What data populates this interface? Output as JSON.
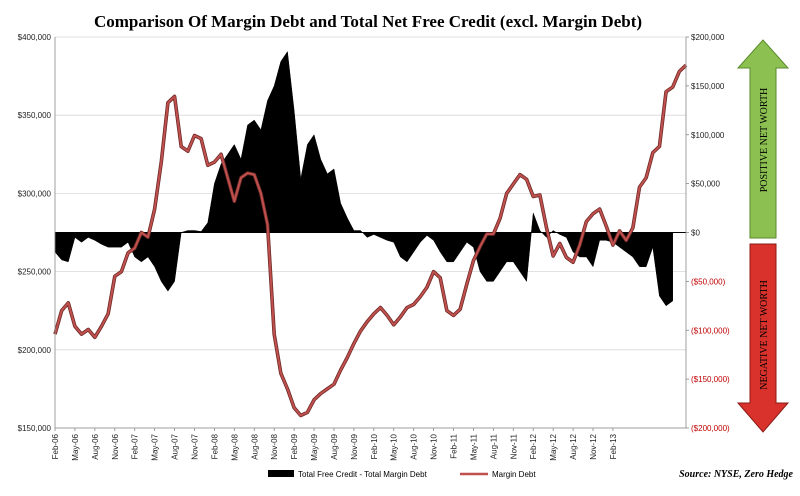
{
  "chart_data": {
    "type": "area+line",
    "title": "Comparison Of Margin Debt and Total Net Free Credit (excl. Margin Debt)",
    "source": "Source: NYSE, Zero Hedge",
    "x_tick_labels": [
      "Feb-06",
      "May-06",
      "Aug-06",
      "Nov-06",
      "Feb-07",
      "May-07",
      "Aug-07",
      "Nov-07",
      "Feb-08",
      "May-08",
      "Aug-08",
      "Nov-08",
      "Feb-09",
      "May-09",
      "Aug-09",
      "Nov-09",
      "Feb-10",
      "May-10",
      "Aug-10",
      "Nov-10",
      "Feb-11",
      "May-11",
      "Aug-11",
      "Nov-11",
      "Feb-12",
      "May-12",
      "Aug-12",
      "Nov-12",
      "Feb-13"
    ],
    "y_left": {
      "ticks": [
        "$150,000",
        "$200,000",
        "$250,000",
        "$300,000",
        "$350,000",
        "$400,000"
      ],
      "tick_values": [
        150000,
        200000,
        250000,
        300000,
        350000,
        400000
      ],
      "lim": [
        150000,
        400000
      ]
    },
    "y_right": {
      "ticks": [
        "($200,000)",
        "($150,000)",
        "($100,000)",
        "($50,000)",
        "$0",
        "$50,000",
        "$100,000",
        "$150,000",
        "$200,000"
      ],
      "tick_values": [
        -200000,
        -150000,
        -100000,
        -50000,
        0,
        50000,
        100000,
        150000,
        200000
      ],
      "lim": [
        -200000,
        200000
      ]
    },
    "series": [
      {
        "name": "Total Free Credit - Total Margin Debt",
        "axis": "right",
        "style": "area",
        "color": "#000000",
        "start": "Feb-06",
        "values": [
          -20000,
          -28000,
          -30000,
          -5000,
          -10000,
          -5000,
          -8000,
          -12000,
          -15000,
          -15000,
          -15000,
          -10000,
          -25000,
          -30000,
          -25000,
          -35000,
          -50000,
          -60000,
          -50000,
          0,
          2000,
          2000,
          1000,
          10000,
          50000,
          70000,
          80000,
          90000,
          75000,
          110000,
          115000,
          105000,
          135000,
          150000,
          175000,
          185000,
          125000,
          55000,
          90000,
          100000,
          75000,
          60000,
          65000,
          30000,
          15000,
          2000,
          2000,
          -5000,
          -2000,
          -5000,
          -8000,
          -10000,
          -25000,
          -30000,
          -20000,
          -10000,
          -3000,
          -8000,
          -20000,
          -30000,
          -30000,
          -20000,
          -10000,
          -15000,
          -40000,
          -50000,
          -50000,
          -40000,
          -30000,
          -30000,
          -40000,
          -50000,
          20000,
          2000,
          -5000,
          2000,
          -2000,
          -5000,
          -20000,
          -25000,
          -25000,
          -35000,
          -8000,
          -8000,
          -10000,
          -15000,
          -20000,
          -25000,
          -35000,
          -35000,
          -15000,
          -65000,
          -75000,
          -70000
        ]
      },
      {
        "name": "Margin Debt",
        "axis": "left",
        "style": "line",
        "color": "#c0504d",
        "start": "Feb-06",
        "values": [
          210000,
          225000,
          230000,
          215000,
          210000,
          213000,
          208000,
          215000,
          223000,
          247000,
          250000,
          262000,
          265000,
          275000,
          272000,
          290000,
          320000,
          358000,
          362000,
          330000,
          327000,
          337000,
          335000,
          318000,
          320000,
          325000,
          310000,
          295000,
          310000,
          313000,
          312000,
          300000,
          280000,
          210000,
          185000,
          175000,
          163000,
          158000,
          160000,
          168000,
          172000,
          175000,
          178000,
          187000,
          195000,
          204000,
          212000,
          218000,
          223000,
          227000,
          222000,
          216000,
          221000,
          227000,
          229000,
          234000,
          240000,
          250000,
          246000,
          225000,
          222000,
          226000,
          242000,
          257000,
          266000,
          274000,
          274000,
          284000,
          300000,
          306000,
          312000,
          309000,
          298000,
          299000,
          278000,
          260000,
          268000,
          259000,
          256000,
          267000,
          282000,
          287000,
          290000,
          279000,
          267000,
          276000,
          270000,
          278000,
          304000,
          310000,
          326000,
          330000,
          365000,
          368000,
          378000,
          382000
        ]
      }
    ],
    "grid": true
  },
  "legend": {
    "area_label": "Total Free Credit - Total Margin Debt",
    "line_label": "Margin Debt"
  },
  "arrows": {
    "positive_label": "POSITIVE NET WORTH",
    "negative_label": "NEGATIVE NET WORTH",
    "positive_color": "#8cc152",
    "negative_color": "#d9322c"
  }
}
